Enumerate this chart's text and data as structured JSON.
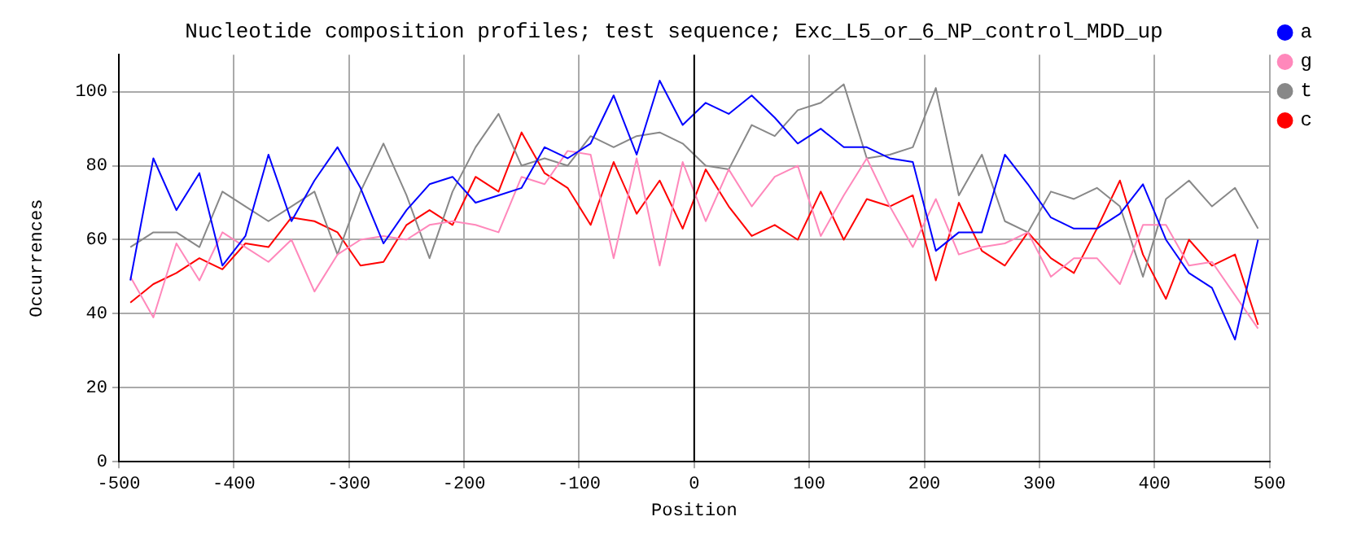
{
  "chart_data": {
    "type": "line",
    "title": "Nucleotide composition profiles; test sequence; Exc_L5_or_6_NP_control_MDD_up",
    "xlabel": "Position",
    "ylabel": "Occurrences",
    "x": [
      -490,
      -470,
      -450,
      -430,
      -410,
      -390,
      -370,
      -350,
      -330,
      -310,
      -290,
      -270,
      -250,
      -230,
      -210,
      -190,
      -170,
      -150,
      -130,
      -110,
      -90,
      -70,
      -50,
      -30,
      -10,
      10,
      30,
      50,
      70,
      90,
      110,
      130,
      150,
      170,
      190,
      210,
      230,
      250,
      270,
      290,
      310,
      330,
      350,
      370,
      390,
      410,
      430,
      450,
      470,
      490
    ],
    "series": [
      {
        "name": "a",
        "color": "#0000ff",
        "values": [
          49,
          82,
          68,
          78,
          53,
          61,
          83,
          65,
          76,
          85,
          74,
          59,
          68,
          75,
          77,
          70,
          72,
          74,
          85,
          82,
          86,
          99,
          83,
          103,
          91,
          97,
          94,
          99,
          93,
          86,
          90,
          85,
          85,
          82,
          81,
          57,
          62,
          62,
          83,
          75,
          66,
          63,
          63,
          67,
          75,
          60,
          51,
          47,
          33,
          60
        ]
      },
      {
        "name": "g",
        "color": "#ff88bb",
        "values": [
          50,
          39,
          59,
          49,
          62,
          58,
          54,
          60,
          46,
          56,
          60,
          61,
          60,
          64,
          65,
          64,
          62,
          77,
          75,
          84,
          83,
          55,
          82,
          53,
          81,
          65,
          79,
          69,
          77,
          80,
          61,
          72,
          82,
          69,
          58,
          71,
          56,
          58,
          59,
          62,
          50,
          55,
          55,
          48,
          64,
          64,
          53,
          54,
          45,
          36
        ]
      },
      {
        "name": "t",
        "color": "#888888",
        "values": [
          58,
          62,
          62,
          58,
          73,
          69,
          65,
          69,
          73,
          56,
          73,
          86,
          72,
          55,
          73,
          85,
          94,
          80,
          82,
          80,
          88,
          85,
          88,
          89,
          86,
          80,
          79,
          91,
          88,
          95,
          97,
          102,
          82,
          83,
          85,
          101,
          72,
          83,
          65,
          62,
          73,
          71,
          74,
          69,
          50,
          71,
          76,
          69,
          74,
          63
        ]
      },
      {
        "name": "c",
        "color": "#ff0000",
        "values": [
          43,
          48,
          51,
          55,
          52,
          59,
          58,
          66,
          65,
          62,
          53,
          54,
          64,
          68,
          64,
          77,
          73,
          89,
          78,
          74,
          64,
          81,
          67,
          76,
          63,
          79,
          69,
          61,
          64,
          60,
          73,
          60,
          71,
          69,
          72,
          49,
          70,
          57,
          53,
          62,
          55,
          51,
          63,
          76,
          56,
          44,
          60,
          53,
          56,
          37
        ]
      }
    ],
    "xlim": [
      -500,
      500
    ],
    "xticks": [
      -500,
      -400,
      -300,
      -200,
      -100,
      0,
      100,
      200,
      300,
      400,
      500
    ],
    "ylim": [
      0,
      110
    ],
    "yticks": [
      0,
      20,
      40,
      60,
      80,
      100
    ],
    "ref_lines": [
      {
        "axis": "x",
        "value": 0,
        "color": "#000000"
      }
    ],
    "grid": true,
    "legend": "top right",
    "marker": "none",
    "line_style": "solid"
  }
}
